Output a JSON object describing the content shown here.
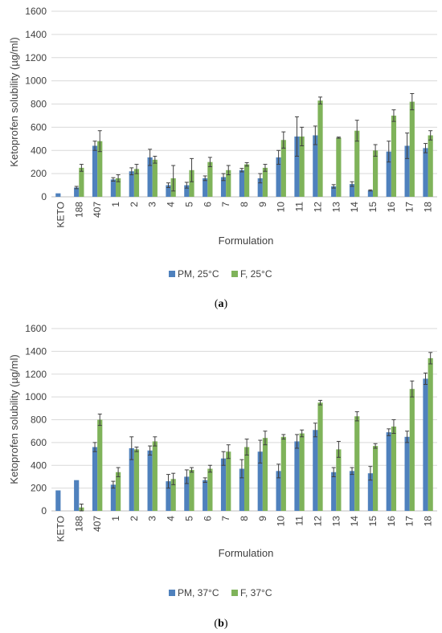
{
  "colors": {
    "pm": "#4f81bd",
    "f": "#7fb35a",
    "grid": "#d9d9d9",
    "axis": "#bfbfbf",
    "error": "#404040"
  },
  "panels": [
    {
      "label": "(a)",
      "label_letter": "a"
    },
    {
      "label": "(b)",
      "label_letter": "b"
    }
  ],
  "chart_data": [
    {
      "type": "bar",
      "title": "",
      "xlabel": "Formulation",
      "ylabel": "Ketoprofen solubility (µg/ml)",
      "ylim": [
        0,
        1600
      ],
      "yticks": [
        0,
        200,
        400,
        600,
        800,
        1000,
        1200,
        1400,
        1600
      ],
      "grid": true,
      "legend_position": "bottom",
      "categories": [
        "KETO",
        "188",
        "407",
        "1",
        "2",
        "3",
        "4",
        "5",
        "6",
        "7",
        "8",
        "9",
        "10",
        "11",
        "12",
        "13",
        "14",
        "15",
        "16",
        "17",
        "18"
      ],
      "series": [
        {
          "name": "PM, 25°C",
          "values": [
            30,
            80,
            440,
            150,
            220,
            340,
            100,
            100,
            160,
            170,
            230,
            160,
            340,
            520,
            530,
            90,
            110,
            55,
            390,
            440,
            420
          ],
          "errors": [
            0,
            10,
            40,
            15,
            30,
            70,
            20,
            25,
            20,
            30,
            15,
            40,
            60,
            170,
            80,
            15,
            20,
            5,
            90,
            110,
            40
          ]
        },
        {
          "name": "F, 25°C",
          "values": [
            null,
            250,
            480,
            160,
            240,
            320,
            160,
            230,
            300,
            230,
            280,
            250,
            490,
            520,
            830,
            510,
            570,
            400,
            700,
            820,
            530
          ],
          "errors": [
            0,
            30,
            90,
            30,
            40,
            30,
            110,
            100,
            40,
            40,
            15,
            30,
            70,
            80,
            30,
            5,
            90,
            50,
            50,
            70,
            40
          ]
        }
      ]
    },
    {
      "type": "bar",
      "title": "",
      "xlabel": "Formulation",
      "ylabel": "Ketoprofen solubility (µg/ml)",
      "ylim": [
        0,
        1600
      ],
      "yticks": [
        0,
        200,
        400,
        600,
        800,
        1000,
        1200,
        1400,
        1600
      ],
      "grid": true,
      "legend_position": "bottom",
      "categories": [
        "KETO",
        "188",
        "407",
        "1",
        "2",
        "3",
        "4",
        "5",
        "6",
        "7",
        "8",
        "9",
        "10",
        "11",
        "12",
        "13",
        "14",
        "15",
        "16",
        "17",
        "18"
      ],
      "series": [
        {
          "name": "PM, 37°C",
          "values": [
            180,
            270,
            560,
            230,
            550,
            530,
            260,
            300,
            270,
            460,
            370,
            520,
            350,
            610,
            710,
            340,
            350,
            330,
            690,
            650,
            1160
          ],
          "errors": [
            0,
            0,
            40,
            30,
            100,
            40,
            60,
            60,
            20,
            60,
            80,
            100,
            60,
            60,
            60,
            40,
            30,
            60,
            30,
            50,
            50
          ]
        },
        {
          "name": "F, 37°C",
          "values": [
            null,
            30,
            800,
            340,
            540,
            610,
            280,
            360,
            370,
            520,
            560,
            640,
            650,
            680,
            950,
            540,
            830,
            570,
            740,
            1070,
            1340
          ],
          "errors": [
            0,
            30,
            50,
            40,
            20,
            40,
            50,
            20,
            30,
            60,
            70,
            60,
            20,
            30,
            20,
            70,
            40,
            20,
            60,
            70,
            50
          ]
        }
      ]
    }
  ]
}
